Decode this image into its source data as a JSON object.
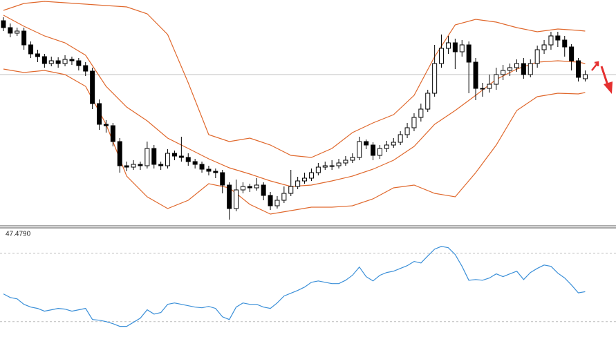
{
  "chart_data": [
    {
      "type": "candlestick",
      "x": [
        0,
        1,
        2,
        3,
        4,
        5,
        6,
        7,
        8,
        9,
        10,
        11,
        12,
        13,
        14,
        15,
        16,
        17,
        18,
        19,
        20,
        21,
        22,
        23,
        24,
        25,
        26,
        27,
        28,
        29,
        30,
        31,
        32,
        33,
        34,
        35,
        36,
        37,
        38,
        39,
        40,
        41,
        42,
        43,
        44,
        45,
        46,
        47,
        48,
        49,
        50,
        51,
        52,
        53,
        54,
        55,
        56,
        57,
        58,
        59,
        60,
        61,
        62,
        63,
        64,
        65,
        66,
        67,
        68,
        69,
        70,
        71,
        72,
        73,
        74,
        75,
        76,
        77,
        78,
        79,
        80,
        81,
        82,
        83,
        84,
        85
      ],
      "open": [
        300,
        290,
        282,
        285,
        265,
        252,
        248,
        238,
        242,
        238,
        244,
        242,
        235,
        227,
        180,
        150,
        148,
        125,
        90,
        88,
        92,
        90,
        115,
        92,
        90,
        108,
        104,
        102,
        96,
        92,
        85,
        82,
        80,
        62,
        28,
        55,
        60,
        58,
        62,
        47,
        32,
        40,
        50,
        60,
        68,
        72,
        80,
        88,
        90,
        90,
        94,
        98,
        102,
        125,
        120,
        105,
        115,
        120,
        124,
        135,
        145,
        160,
        172,
        195,
        238,
        260,
        268,
        255,
        265,
        240,
        202,
        202,
        208,
        222,
        228,
        232,
        238,
        222,
        238,
        258,
        265,
        278,
        272,
        262,
        242,
        216
      ],
      "high": [
        305,
        296,
        290,
        290,
        270,
        258,
        252,
        248,
        247,
        250,
        248,
        246,
        240,
        232,
        186,
        156,
        152,
        130,
        96,
        98,
        96,
        125,
        120,
        96,
        114,
        112,
        132,
        108,
        100,
        96,
        90,
        86,
        84,
        66,
        70,
        66,
        64,
        72,
        66,
        52,
        46,
        60,
        84,
        74,
        80,
        86,
        94,
        96,
        98,
        100,
        104,
        108,
        132,
        128,
        124,
        120,
        126,
        130,
        140,
        152,
        166,
        180,
        200,
        265,
        280,
        278,
        274,
        272,
        270,
        246,
        210,
        222,
        232,
        236,
        238,
        244,
        246,
        244,
        264,
        272,
        284,
        284,
        278,
        266,
        246,
        228
      ],
      "low": [
        285,
        276,
        278,
        258,
        246,
        240,
        232,
        234,
        232,
        234,
        236,
        228,
        220,
        172,
        142,
        138,
        118,
        80,
        82,
        84,
        84,
        86,
        86,
        84,
        86,
        98,
        96,
        90,
        86,
        80,
        76,
        72,
        50,
        12,
        24,
        50,
        52,
        54,
        40,
        26,
        28,
        36,
        46,
        56,
        64,
        68,
        76,
        84,
        84,
        86,
        90,
        94,
        98,
        114,
        98,
        100,
        110,
        116,
        120,
        130,
        140,
        154,
        168,
        190,
        232,
        252,
        230,
        248,
        195,
        185,
        190,
        196,
        200,
        214,
        220,
        226,
        216,
        218,
        232,
        252,
        258,
        262,
        248,
        228,
        212,
        212
      ],
      "close": [
        290,
        282,
        285,
        265,
        252,
        248,
        238,
        242,
        238,
        244,
        242,
        235,
        227,
        180,
        150,
        148,
        125,
        90,
        88,
        92,
        90,
        115,
        92,
        90,
        108,
        104,
        102,
        96,
        92,
        85,
        82,
        80,
        62,
        28,
        55,
        60,
        58,
        62,
        47,
        32,
        40,
        50,
        60,
        68,
        72,
        80,
        88,
        90,
        90,
        94,
        98,
        102,
        125,
        120,
        105,
        115,
        120,
        124,
        135,
        145,
        160,
        172,
        195,
        238,
        260,
        268,
        255,
        265,
        240,
        202,
        202,
        208,
        222,
        228,
        232,
        238,
        222,
        238,
        258,
        265,
        278,
        272,
        262,
        242,
        218,
        222
      ],
      "band_x": [
        0,
        3,
        6,
        9,
        12,
        15,
        18,
        21,
        24,
        27,
        30,
        33,
        36,
        39,
        42,
        45,
        48,
        51,
        54,
        57,
        60,
        63,
        66,
        69,
        72,
        75,
        78,
        81,
        84,
        85
      ],
      "bands": [
        {
          "color": "#e0682c",
          "values": [
            315,
            325,
            328,
            326,
            324,
            322,
            320,
            310,
            280,
            210,
            135,
            125,
            130,
            120,
            105,
            102,
            115,
            138,
            152,
            164,
            192,
            248,
            294,
            302,
            298,
            290,
            284,
            288,
            286,
            285
          ]
        },
        {
          "color": "#e0682c",
          "values": [
            308,
            292,
            278,
            268,
            250,
            205,
            175,
            155,
            130,
            115,
            100,
            87,
            78,
            68,
            60,
            62,
            68,
            75,
            85,
            98,
            118,
            150,
            170,
            192,
            215,
            230,
            240,
            242,
            240,
            238
          ]
        },
        {
          "color": "#e0682c",
          "values": [
            230,
            225,
            228,
            222,
            205,
            150,
            75,
            45,
            28,
            40,
            64,
            58,
            34,
            20,
            25,
            30,
            30,
            32,
            42,
            58,
            62,
            50,
            45,
            80,
            120,
            170,
            190,
            195,
            194,
            196
          ]
        }
      ],
      "price_line": 222,
      "xlim": [
        -0.5,
        89.5
      ],
      "ylim": [
        2,
        330
      ]
    },
    {
      "type": "line",
      "label": "47.4790",
      "x": [
        0,
        1,
        2,
        3,
        4,
        5,
        6,
        7,
        8,
        9,
        10,
        11,
        12,
        13,
        14,
        15,
        16,
        17,
        18,
        19,
        20,
        21,
        22,
        23,
        24,
        25,
        26,
        27,
        28,
        29,
        30,
        31,
        32,
        33,
        34,
        35,
        36,
        37,
        38,
        39,
        40,
        41,
        42,
        43,
        44,
        45,
        46,
        47,
        48,
        49,
        50,
        51,
        52,
        53,
        54,
        55,
        56,
        57,
        58,
        59,
        60,
        61,
        62,
        63,
        64,
        65,
        66,
        67,
        68,
        69,
        70,
        71,
        72,
        73,
        74,
        75,
        76,
        77,
        78,
        79,
        80,
        81,
        82,
        83,
        84,
        85
      ],
      "series": [
        {
          "color": "#3a8fd8",
          "values": [
            46.2,
            44.1,
            43.3,
            40.1,
            38.5,
            37.7,
            36.1,
            36.9,
            37.7,
            37.3,
            36.1,
            36.9,
            37.7,
            31.2,
            30.8,
            30.0,
            28.8,
            27.2,
            27.2,
            29.6,
            32.0,
            36.9,
            34.4,
            35.3,
            40.1,
            40.9,
            40.1,
            39.3,
            38.5,
            38.1,
            38.9,
            37.7,
            32.8,
            31.2,
            38.5,
            40.9,
            40.1,
            40.1,
            38.5,
            37.7,
            40.9,
            45.0,
            46.6,
            48.2,
            50.2,
            53.0,
            53.8,
            53.0,
            52.2,
            52.2,
            54.2,
            57.1,
            61.9,
            56.3,
            53.8,
            57.1,
            58.7,
            59.5,
            61.1,
            62.7,
            65.2,
            64.3,
            68.4,
            72.4,
            74.0,
            73.2,
            69.2,
            62.3,
            54.2,
            54.6,
            54.2,
            55.5,
            57.9,
            56.3,
            57.9,
            59.5,
            54.6,
            58.7,
            61.1,
            63.1,
            62.3,
            58.3,
            55.5,
            51.4,
            46.8,
            47.479
          ]
        }
      ],
      "levels": [
        30,
        70
      ],
      "xlim": [
        -0.5,
        89.5
      ],
      "ylim": [
        21,
        84
      ]
    }
  ]
}
